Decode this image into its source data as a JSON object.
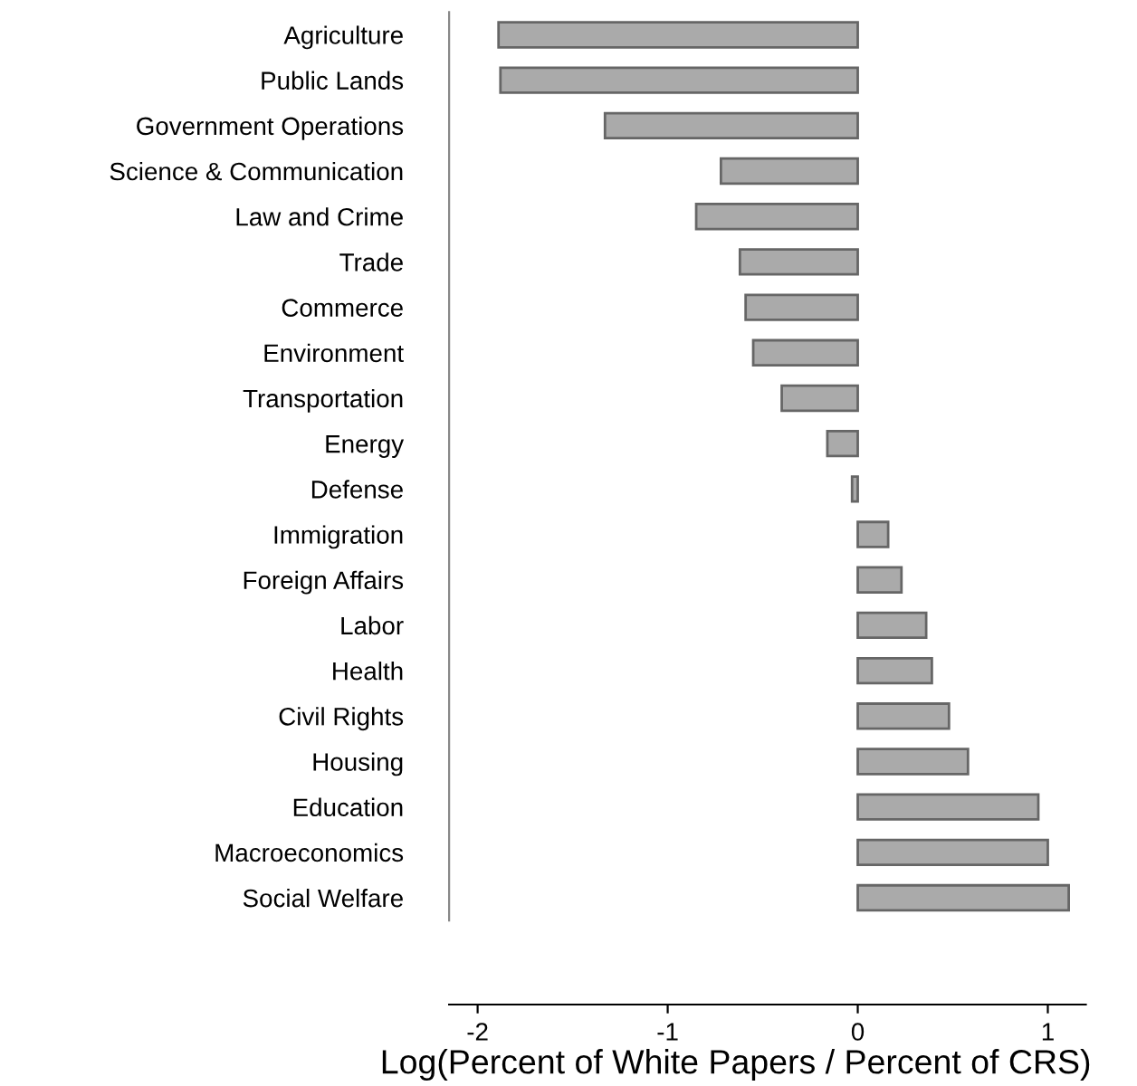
{
  "chart_data": {
    "type": "bar",
    "orientation": "horizontal",
    "xlabel": "Log(Percent of White Papers / Percent of CRS)",
    "categories": [
      "Agriculture",
      "Public Lands",
      "Government Operations",
      "Science & Communication",
      "Law and Crime",
      "Trade",
      "Commerce",
      "Environment",
      "Transportation",
      "Energy",
      "Defense",
      "Immigration",
      "Foreign Affairs",
      "Labor",
      "Health",
      "Civil Rights",
      "Housing",
      "Education",
      "Macroeconomics",
      "Social Welfare"
    ],
    "values": [
      -1.89,
      -1.88,
      -1.33,
      -0.72,
      -0.85,
      -0.62,
      -0.59,
      -0.55,
      -0.4,
      -0.16,
      -0.03,
      0.16,
      0.23,
      0.36,
      0.39,
      0.48,
      0.58,
      0.95,
      1.0,
      1.11
    ],
    "color": "#aaaaaa",
    "xlim": [
      -2.15,
      1.2
    ],
    "xticks": [
      -2,
      -1,
      0,
      1
    ],
    "grid": false,
    "legend": false
  }
}
